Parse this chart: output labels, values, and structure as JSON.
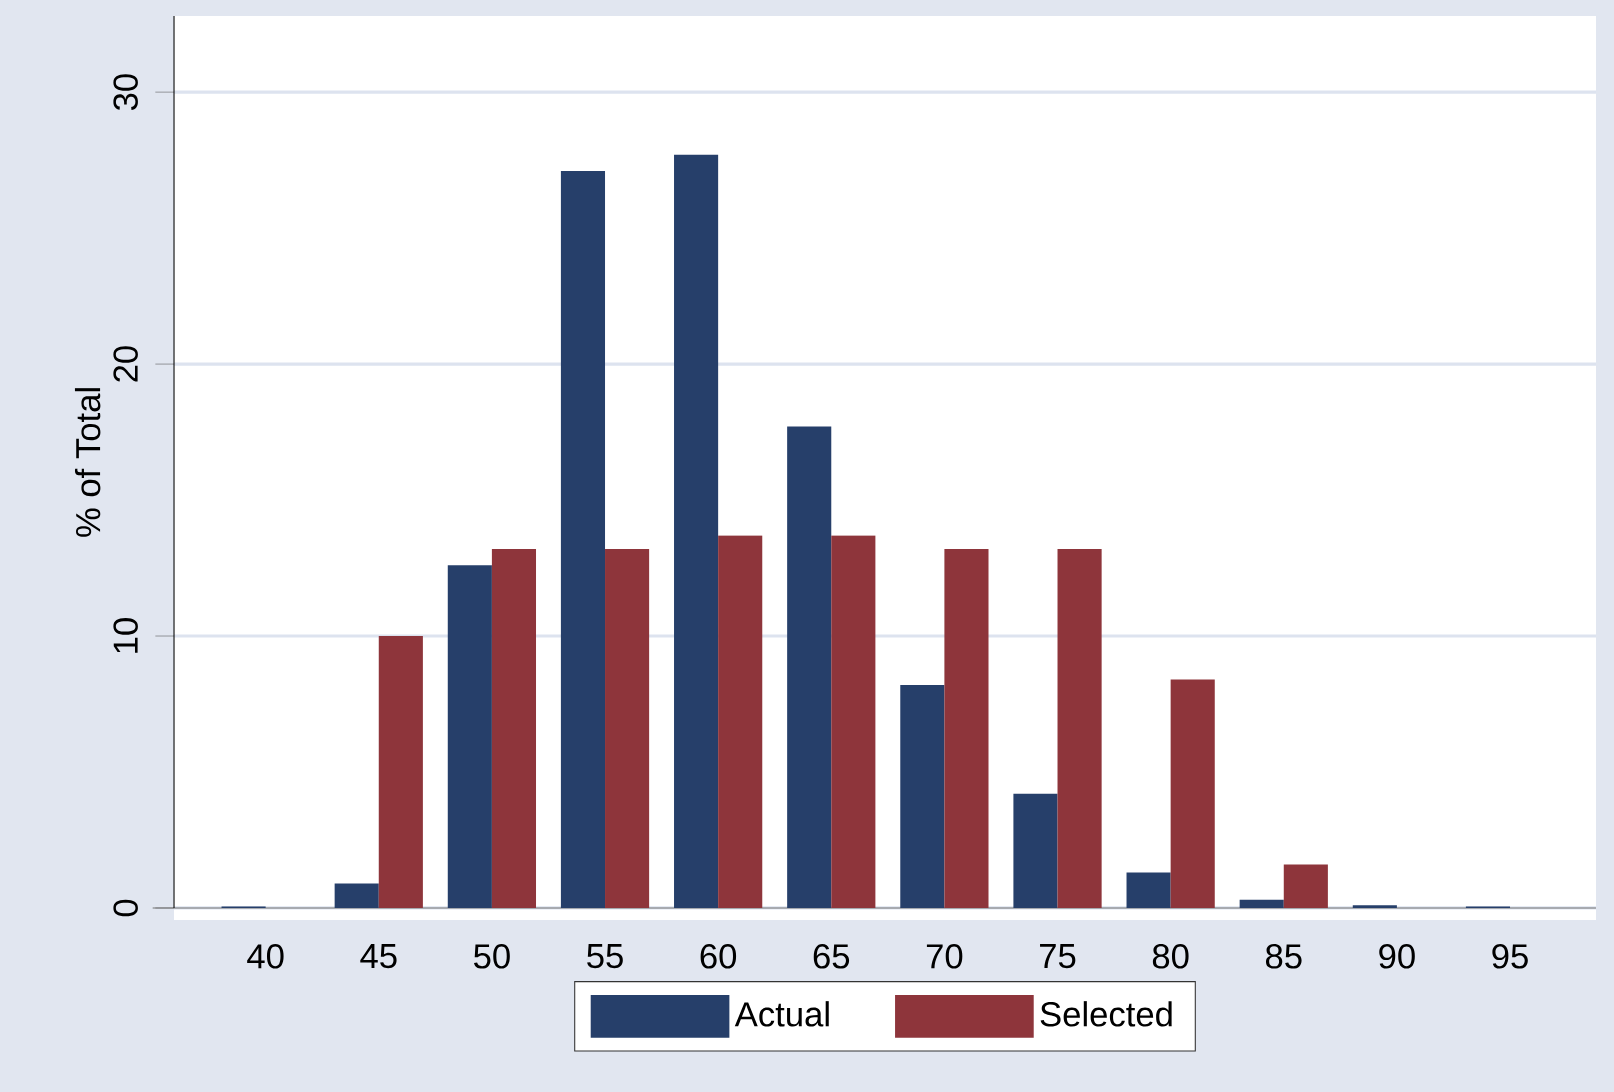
{
  "chart_data": {
    "type": "bar",
    "ylabel": "% of Total",
    "categories": [
      "40",
      "45",
      "50",
      "55",
      "60",
      "65",
      "70",
      "75",
      "80",
      "85",
      "90",
      "95"
    ],
    "series": [
      {
        "name": "Actual",
        "color": "#263f6a",
        "values": [
          0.05,
          0.9,
          12.6,
          27.1,
          27.7,
          17.7,
          8.2,
          4.2,
          1.3,
          0.3,
          0.1,
          0.05
        ]
      },
      {
        "name": "Selected",
        "color": "#8e353b",
        "values": [
          0,
          10.0,
          13.2,
          13.2,
          13.7,
          13.7,
          13.2,
          13.2,
          8.4,
          1.6,
          0,
          0
        ]
      }
    ],
    "ylim": [
      0,
      32.8
    ],
    "yticks": [
      0,
      10,
      20,
      30
    ],
    "grid": "y",
    "legend": "bottom"
  }
}
